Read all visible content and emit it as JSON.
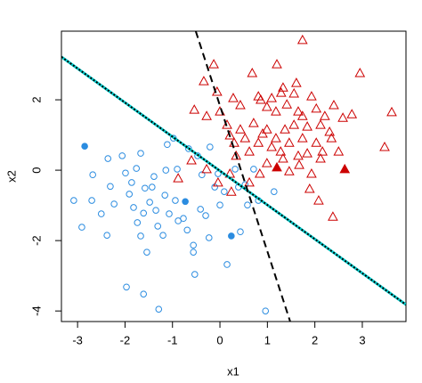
{
  "chart_data": {
    "type": "scatter",
    "xlabel": "x1",
    "ylabel": "x2",
    "xlim": [
      -3.34,
      3.92
    ],
    "ylim": [
      -4.3,
      3.95
    ],
    "xticks": [
      -3,
      -2,
      -1,
      0,
      1,
      2,
      3
    ],
    "yticks": [
      -4,
      -2,
      0,
      2
    ],
    "series": [
      {
        "color": "#2b8ce0",
        "marker": "circle",
        "filled": false,
        "x": [
          -3.08,
          -2.91,
          -2.68,
          -2.7,
          -2.5,
          -2.38,
          -2.31,
          -2.36,
          -2.23,
          -2.06,
          -1.99,
          -1.91,
          -1.86,
          -1.82,
          -1.76,
          -1.74,
          -1.67,
          -1.61,
          -1.58,
          -1.54,
          -1.48,
          -1.43,
          -1.39,
          -1.35,
          -1.31,
          -1.2,
          -1.16,
          -1.14,
          -1.11,
          -1.07,
          -0.98,
          -0.94,
          -0.9,
          -0.88,
          -0.77,
          -0.69,
          -0.66,
          -0.56,
          -0.53,
          -0.47,
          -0.41,
          -0.38,
          -0.3,
          -0.23,
          -0.21,
          -0.11,
          -0.04,
          0.0,
          0.09,
          0.15,
          0.32,
          0.39,
          0.53,
          0.58,
          0.71,
          0.81,
          0.96,
          1.14,
          -1.97,
          -1.61,
          -1.29,
          -0.56,
          -1.67,
          0.43
        ],
        "values": [
          -0.86,
          -1.62,
          -0.13,
          -0.86,
          -1.24,
          -1.85,
          -0.46,
          0.33,
          -0.96,
          0.41,
          -0.08,
          -0.68,
          -0.35,
          -1.06,
          0.05,
          -1.49,
          -1.87,
          -1.22,
          -0.51,
          -2.33,
          -0.91,
          -0.48,
          -0.18,
          -1.14,
          -1.59,
          -1.85,
          -0.71,
          0.0,
          0.73,
          -1.24,
          0.91,
          -0.86,
          0.03,
          -1.44,
          -1.37,
          -1.7,
          0.61,
          -2.13,
          -2.96,
          0.41,
          -1.11,
          -0.13,
          -1.29,
          -1.92,
          0.66,
          -0.48,
          -0.1,
          -0.99,
          -0.61,
          -2.68,
          0.03,
          -0.48,
          -0.41,
          -0.99,
          0.03,
          -0.86,
          -4.0,
          -0.61,
          -3.32,
          -3.52,
          -3.95,
          -2.33,
          0.48,
          -1.75
        ]
      },
      {
        "color": "#2b8ce0",
        "marker": "circle",
        "filled": true,
        "x": [
          -2.85,
          -0.73,
          0.24
        ],
        "values": [
          0.68,
          -0.89,
          -1.87
        ]
      },
      {
        "color": "#cc0000",
        "marker": "triangle",
        "filled": false,
        "x": [
          -0.13,
          -0.34,
          0.68,
          1.2,
          1.74,
          1.33,
          1.61,
          2.95,
          3.62,
          3.47,
          -0.06,
          0.28,
          0.43,
          0.81,
          0.86,
          0.99,
          1.09,
          1.18,
          1.29,
          1.41,
          1.56,
          1.65,
          1.74,
          1.84,
          1.93,
          2.03,
          2.12,
          2.21,
          2.31,
          2.4,
          2.59,
          2.78,
          -0.54,
          -0.28,
          0.0,
          0.15,
          0.21,
          0.3,
          0.43,
          0.53,
          0.62,
          0.71,
          0.81,
          0.9,
          0.99,
          1.09,
          1.18,
          1.28,
          1.37,
          1.46,
          1.56,
          1.65,
          1.74,
          1.84,
          1.93,
          2.03,
          2.12,
          2.16,
          2.35,
          2.5,
          -0.88,
          -0.6,
          -0.28,
          -0.04,
          0.21,
          0.34,
          0.62,
          0.84,
          0.99,
          1.33,
          1.46,
          1.67,
          1.89,
          2.08,
          2.38,
          0.24
        ],
        "values": [
          3.01,
          2.53,
          2.76,
          3.01,
          3.7,
          2.35,
          2.48,
          2.76,
          1.65,
          0.66,
          2.23,
          2.05,
          1.85,
          2.1,
          2.0,
          1.8,
          2.05,
          1.67,
          2.2,
          1.87,
          2.18,
          1.67,
          1.54,
          1.24,
          2.1,
          1.75,
          1.29,
          1.54,
          1.09,
          1.85,
          1.49,
          1.59,
          1.72,
          1.54,
          1.67,
          1.29,
          0.99,
          0.78,
          1.16,
          0.91,
          0.53,
          1.34,
          0.78,
          1.04,
          1.16,
          0.66,
          0.91,
          0.53,
          1.16,
          0.78,
          1.29,
          0.41,
          0.91,
          0.48,
          -0.1,
          0.78,
          0.33,
          0.53,
          0.91,
          0.53,
          -0.23,
          0.28,
          0.03,
          -0.35,
          -0.1,
          0.41,
          -0.35,
          -0.1,
          0.2,
          0.33,
          -0.03,
          0.15,
          -0.53,
          -0.86,
          -1.32,
          -0.61
        ]
      },
      {
        "color": "#cc0000",
        "marker": "triangle",
        "filled": true,
        "x": [
          1.2,
          2.63
        ],
        "values": [
          0.08,
          0.03
        ]
      }
    ],
    "lines": [
      {
        "color": "#00cccc",
        "dash": "solid",
        "x": [
          -3.34,
          3.92
        ],
        "values": [
          3.22,
          -3.82
        ]
      },
      {
        "color": "#000000",
        "dash": "dotted",
        "x": [
          -3.34,
          3.92
        ],
        "values": [
          3.22,
          -3.82
        ]
      },
      {
        "color": "#000000",
        "dash": "dashed",
        "x": [
          -0.51,
          1.48
        ],
        "values": [
          3.95,
          -4.3
        ]
      }
    ]
  }
}
